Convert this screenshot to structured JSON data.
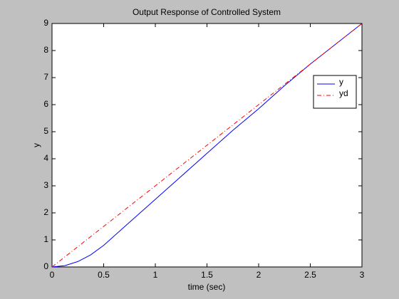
{
  "chart_data": {
    "type": "line",
    "title": "Output Response of Controlled System",
    "x_label": "time (sec)",
    "y_label": "y",
    "x": [
      0,
      0.125,
      0.25,
      0.375,
      0.5,
      0.75,
      1,
      1.25,
      1.5,
      1.75,
      2,
      2.25,
      2.5,
      2.75,
      3
    ],
    "series": [
      {
        "name": "y",
        "color": "#0000ff",
        "dash": "none",
        "values": [
          0,
          0.05,
          0.2,
          0.45,
          0.8,
          1.65,
          2.5,
          3.35,
          4.2,
          5.05,
          5.85,
          6.7,
          7.5,
          8.25,
          9
        ]
      },
      {
        "name": "yd",
        "color": "#ff0000",
        "dash": "6 3 1 3",
        "values": [
          0,
          0.375,
          0.75,
          1.125,
          1.5,
          2.25,
          3,
          3.75,
          4.5,
          5.25,
          6,
          6.75,
          7.5,
          8.25,
          9
        ]
      }
    ],
    "xlim": [
      0,
      3
    ],
    "xticks": [
      0,
      0.5,
      1,
      1.5,
      2,
      2.5,
      3
    ],
    "ylim": [
      0,
      9
    ],
    "yticks": [
      0,
      1,
      2,
      3,
      4,
      5,
      6,
      7,
      8,
      9
    ],
    "grid": false,
    "legend": "upper-right"
  }
}
